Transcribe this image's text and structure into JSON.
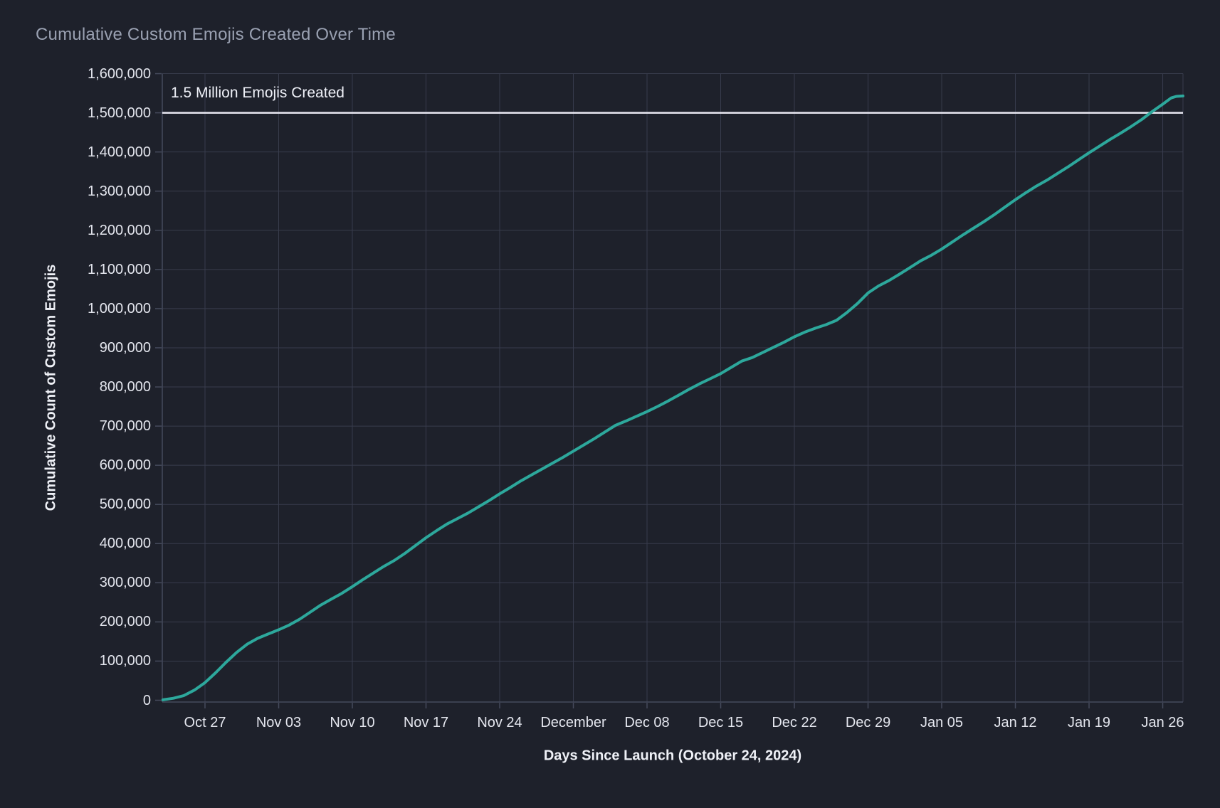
{
  "page": {
    "background": "#1e212b"
  },
  "chart_data": {
    "type": "line",
    "title": "Cumulative Custom Emojis Created Over Time",
    "xlabel": "Days Since Launch (October 24, 2024)",
    "ylabel": "Cumulative Count of Custom Emojis",
    "ylim": [
      0,
      1600000
    ],
    "x_unit": "days_since_launch_2024_10_24",
    "xlim_days": [
      -1.1,
      96.1
    ],
    "grid": true,
    "legend_position": "none",
    "colors": {
      "line": "#2da89c",
      "reference_line": "#eae9f3",
      "grid": "#383c4d",
      "axis": "#454a5c",
      "tick_label": "#e4e6ee",
      "axis_title": "#eff1f7",
      "title": "#9aa1b2",
      "annotation": "#eef0f7",
      "background": "#1e212b"
    },
    "reference_line": {
      "value": 1500000,
      "label": "1.5 Million Emojis Created"
    },
    "y_ticks": [
      {
        "value": 0,
        "label": "0"
      },
      {
        "value": 100000,
        "label": "100,000"
      },
      {
        "value": 200000,
        "label": "200,000"
      },
      {
        "value": 300000,
        "label": "300,000"
      },
      {
        "value": 400000,
        "label": "400,000"
      },
      {
        "value": 500000,
        "label": "500,000"
      },
      {
        "value": 600000,
        "label": "600,000"
      },
      {
        "value": 700000,
        "label": "700,000"
      },
      {
        "value": 800000,
        "label": "800,000"
      },
      {
        "value": 900000,
        "label": "900,000"
      },
      {
        "value": 1000000,
        "label": "1,000,000"
      },
      {
        "value": 1100000,
        "label": "1,100,000"
      },
      {
        "value": 1200000,
        "label": "1,200,000"
      },
      {
        "value": 1300000,
        "label": "1,300,000"
      },
      {
        "value": 1400000,
        "label": "1,400,000"
      },
      {
        "value": 1500000,
        "label": "1,500,000"
      },
      {
        "value": 1600000,
        "label": "1,600,000"
      }
    ],
    "x_ticks": [
      {
        "day": 3,
        "label": "Oct 27"
      },
      {
        "day": 10,
        "label": "Nov 03"
      },
      {
        "day": 17,
        "label": "Nov 10"
      },
      {
        "day": 24,
        "label": "Nov 17"
      },
      {
        "day": 31,
        "label": "Nov 24"
      },
      {
        "day": 38,
        "label": "December"
      },
      {
        "day": 45,
        "label": "Dec 08"
      },
      {
        "day": 52,
        "label": "Dec 15"
      },
      {
        "day": 59,
        "label": "Dec 22"
      },
      {
        "day": 66,
        "label": "Dec 29"
      },
      {
        "day": 73,
        "label": "Jan 05"
      },
      {
        "day": 80,
        "label": "Jan 12"
      },
      {
        "day": 87,
        "label": "Jan 19"
      },
      {
        "day": 94,
        "label": "Jan 26"
      }
    ],
    "series": [
      {
        "name": "cumulative_custom_emojis",
        "points": [
          [
            -1,
            1000
          ],
          [
            0,
            5000
          ],
          [
            1,
            12000
          ],
          [
            2,
            26000
          ],
          [
            3,
            45000
          ],
          [
            4,
            70000
          ],
          [
            5,
            97000
          ],
          [
            6,
            122000
          ],
          [
            7,
            143000
          ],
          [
            8,
            158000
          ],
          [
            9,
            169000
          ],
          [
            10,
            180000
          ],
          [
            11,
            192000
          ],
          [
            12,
            207000
          ],
          [
            13,
            225000
          ],
          [
            14,
            243000
          ],
          [
            15,
            258000
          ],
          [
            16,
            273000
          ],
          [
            17,
            290000
          ],
          [
            18,
            308000
          ],
          [
            19,
            325000
          ],
          [
            20,
            342000
          ],
          [
            21,
            357000
          ],
          [
            22,
            375000
          ],
          [
            23,
            395000
          ],
          [
            24,
            415000
          ],
          [
            25,
            433000
          ],
          [
            26,
            450000
          ],
          [
            27,
            464000
          ],
          [
            28,
            478000
          ],
          [
            29,
            494000
          ],
          [
            30,
            510000
          ],
          [
            31,
            527000
          ],
          [
            32,
            543000
          ],
          [
            33,
            560000
          ],
          [
            34,
            575000
          ],
          [
            35,
            590000
          ],
          [
            36,
            605000
          ],
          [
            37,
            620000
          ],
          [
            38,
            636000
          ],
          [
            39,
            652000
          ],
          [
            40,
            668000
          ],
          [
            41,
            685000
          ],
          [
            42,
            702000
          ],
          [
            43,
            713000
          ],
          [
            44,
            725000
          ],
          [
            45,
            737000
          ],
          [
            46,
            750000
          ],
          [
            47,
            764000
          ],
          [
            48,
            779000
          ],
          [
            49,
            794000
          ],
          [
            50,
            808000
          ],
          [
            51,
            821000
          ],
          [
            52,
            834000
          ],
          [
            53,
            850000
          ],
          [
            54,
            866000
          ],
          [
            55,
            875000
          ],
          [
            56,
            888000
          ],
          [
            57,
            901000
          ],
          [
            58,
            914000
          ],
          [
            59,
            928000
          ],
          [
            60,
            940000
          ],
          [
            61,
            950000
          ],
          [
            62,
            959000
          ],
          [
            63,
            970000
          ],
          [
            64,
            990000
          ],
          [
            65,
            1013000
          ],
          [
            66,
            1040000
          ],
          [
            67,
            1058000
          ],
          [
            68,
            1072000
          ],
          [
            69,
            1088000
          ],
          [
            70,
            1105000
          ],
          [
            71,
            1122000
          ],
          [
            72,
            1136000
          ],
          [
            73,
            1152000
          ],
          [
            74,
            1170000
          ],
          [
            75,
            1188000
          ],
          [
            76,
            1205000
          ],
          [
            77,
            1222000
          ],
          [
            78,
            1240000
          ],
          [
            79,
            1259000
          ],
          [
            80,
            1278000
          ],
          [
            81,
            1296000
          ],
          [
            82,
            1313000
          ],
          [
            83,
            1328000
          ],
          [
            84,
            1345000
          ],
          [
            85,
            1362000
          ],
          [
            86,
            1380000
          ],
          [
            87,
            1398000
          ],
          [
            88,
            1415000
          ],
          [
            89,
            1432000
          ],
          [
            90,
            1448000
          ],
          [
            91,
            1465000
          ],
          [
            92,
            1483000
          ],
          [
            93,
            1503000
          ],
          [
            94,
            1522000
          ],
          [
            94.8,
            1538000
          ],
          [
            95.3,
            1542000
          ],
          [
            96,
            1543000
          ]
        ]
      }
    ]
  }
}
